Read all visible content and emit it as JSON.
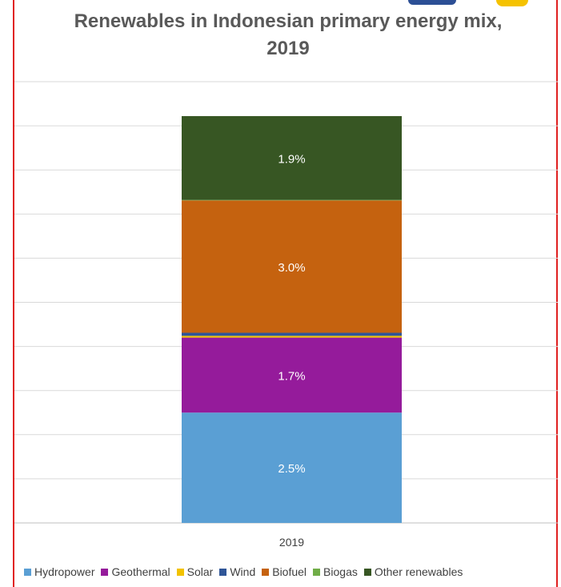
{
  "chart_data": {
    "type": "bar",
    "stacked": true,
    "title_line1": "Renewables in Indonesian primary energy mix,",
    "title_line2": "2019",
    "categories": [
      "2019"
    ],
    "xlabel": "",
    "ylabel": "",
    "ylim": [
      0,
      10
    ],
    "grid": true,
    "legend_position": "bottom",
    "series": [
      {
        "name": "Hydropower",
        "values": [
          2.5
        ],
        "label": "2.5%",
        "color": "#5a9fd4"
      },
      {
        "name": "Geothermal",
        "values": [
          1.7
        ],
        "label": "1.7%",
        "color": "#951b9b"
      },
      {
        "name": "Solar",
        "values": [
          0.04
        ],
        "label": "",
        "color": "#f2c200"
      },
      {
        "name": "Wind",
        "values": [
          0.07
        ],
        "label": "",
        "color": "#2f5597"
      },
      {
        "name": "Biofuel",
        "values": [
          3.0
        ],
        "label": "3.0%",
        "color": "#c5620f"
      },
      {
        "name": "Biogas",
        "values": [
          0.01
        ],
        "label": "",
        "color": "#70ad47"
      },
      {
        "name": "Other renewables",
        "values": [
          1.9
        ],
        "label": "1.9%",
        "color": "#375623"
      }
    ]
  }
}
